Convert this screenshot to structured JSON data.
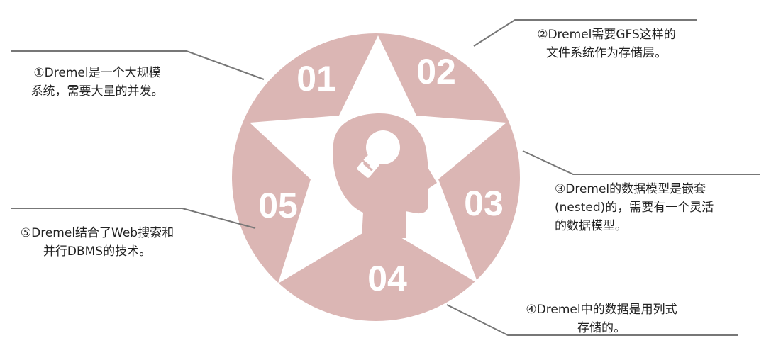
{
  "numbers": [
    "01",
    "02",
    "03",
    "04",
    "05"
  ],
  "notes": {
    "n1": [
      "①Dremel是一个大规模",
      "系统，需要大量的并发。"
    ],
    "n2": [
      "②Dremel需要GFS这样的",
      "文件系统作为存储层。"
    ],
    "n3": [
      "③Dremel的数据模型是嵌套",
      "(nested)的，需要有一个灵活",
      "的数据模型。"
    ],
    "n4": [
      "④Dremel中的数据是用列式",
      "存储的。"
    ],
    "n5": [
      "⑤Dremel结合了Web搜索和",
      "并行DBMS的技术。"
    ]
  },
  "colors": {
    "circle": "#dbb6b4",
    "star": "#ffffff",
    "line": "#777777",
    "text": "#222222"
  },
  "icons": [
    "head-lightbulb-icon"
  ]
}
